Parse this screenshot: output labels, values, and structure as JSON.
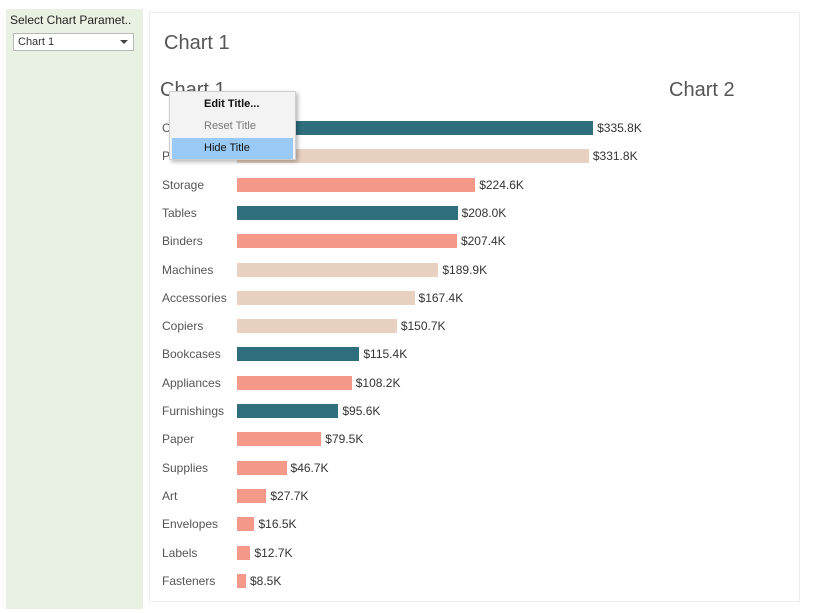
{
  "parameter": {
    "title": "Select Chart Paramet..",
    "selected": "Chart 1"
  },
  "dashboard": {
    "title": "Chart 1"
  },
  "sheets": {
    "chart1_title": "Chart 1",
    "chart2_title": "Chart 2"
  },
  "context_menu": {
    "items": [
      {
        "label": "Edit Title...",
        "state": "bold"
      },
      {
        "label": "Reset Title",
        "state": "disabled"
      },
      {
        "label": "Hide Title",
        "state": "highlighted"
      }
    ]
  },
  "colors": {
    "teal": "#2e6e7d",
    "salmon": "#f4998a",
    "beige": "#e8d1c0",
    "highlight": "#99c9f5",
    "panel": "#e8f1e2"
  },
  "chart_data": {
    "type": "bar",
    "orientation": "horizontal",
    "categories": [
      "Chairs",
      "Phones",
      "Storage",
      "Tables",
      "Binders",
      "Machines",
      "Accessories",
      "Copiers",
      "Bookcases",
      "Appliances",
      "Furnishings",
      "Paper",
      "Supplies",
      "Art",
      "Envelopes",
      "Labels",
      "Fasteners"
    ],
    "values": [
      335.8,
      331.8,
      224.6,
      208.0,
      207.4,
      189.9,
      167.4,
      150.7,
      115.4,
      108.2,
      95.6,
      79.5,
      46.7,
      27.7,
      16.5,
      12.7,
      8.5
    ],
    "value_labels": [
      "$335.8K",
      "$331.8K",
      "$224.6K",
      "$208.0K",
      "$207.4K",
      "$189.9K",
      "$167.4K",
      "$150.7K",
      "$115.4K",
      "$108.2K",
      "$95.6K",
      "$79.5K",
      "$46.7K",
      "$27.7K",
      "$16.5K",
      "$12.7K",
      "$8.5K"
    ],
    "colors": [
      "#2e6e7d",
      "#e8d1c0",
      "#f4998a",
      "#2e6e7d",
      "#f4998a",
      "#e8d1c0",
      "#e8d1c0",
      "#e8d1c0",
      "#2e6e7d",
      "#f4998a",
      "#2e6e7d",
      "#f4998a",
      "#f4998a",
      "#f4998a",
      "#f4998a",
      "#f4998a",
      "#f4998a"
    ],
    "units": "K",
    "xlim": [
      0,
      360
    ]
  }
}
